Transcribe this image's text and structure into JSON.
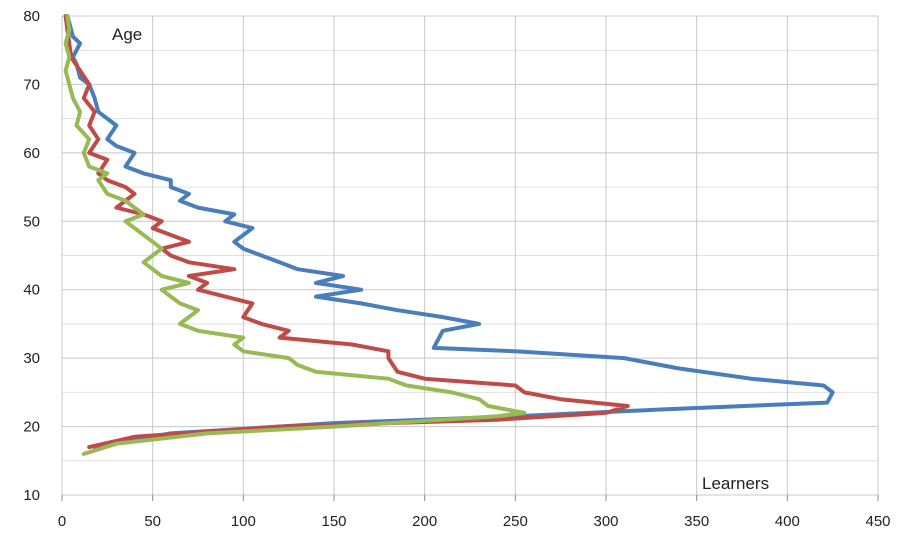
{
  "chart_data": {
    "type": "line",
    "title": "",
    "xlabel": "Learners",
    "ylabel": "Age",
    "xlim": [
      0,
      450
    ],
    "ylim": [
      10,
      80
    ],
    "x_ticks": [
      0,
      50,
      100,
      150,
      200,
      250,
      300,
      350,
      400,
      450
    ],
    "y_ticks": [
      10,
      20,
      30,
      40,
      50,
      60,
      70,
      80
    ],
    "grid": true,
    "legend": "none",
    "series": [
      {
        "color": "#4a7ebb",
        "points": [
          [
            18,
            17
          ],
          [
            60,
            19
          ],
          [
            150,
            20.5
          ],
          [
            250,
            21.5
          ],
          [
            330,
            22.5
          ],
          [
            422,
            23.5
          ],
          [
            425,
            25
          ],
          [
            420,
            26
          ],
          [
            380,
            27
          ],
          [
            340,
            28.5
          ],
          [
            310,
            30
          ],
          [
            250,
            31
          ],
          [
            205,
            31.5
          ],
          [
            208,
            33
          ],
          [
            210,
            34
          ],
          [
            230,
            35
          ],
          [
            210,
            36
          ],
          [
            185,
            37
          ],
          [
            165,
            38
          ],
          [
            140,
            39
          ],
          [
            165,
            40
          ],
          [
            140,
            41
          ],
          [
            155,
            42
          ],
          [
            130,
            43
          ],
          [
            120,
            44
          ],
          [
            110,
            45
          ],
          [
            100,
            46
          ],
          [
            95,
            47
          ],
          [
            105,
            49
          ],
          [
            90,
            50
          ],
          [
            95,
            51
          ],
          [
            75,
            52
          ],
          [
            65,
            53
          ],
          [
            70,
            54
          ],
          [
            60,
            55
          ],
          [
            60,
            56
          ],
          [
            45,
            57
          ],
          [
            35,
            58
          ],
          [
            40,
            60
          ],
          [
            30,
            61
          ],
          [
            25,
            62
          ],
          [
            30,
            64
          ],
          [
            20,
            66
          ],
          [
            18,
            68
          ],
          [
            15,
            70
          ],
          [
            10,
            71
          ],
          [
            8,
            73
          ],
          [
            6,
            74
          ],
          [
            10,
            76
          ],
          [
            6,
            77
          ],
          [
            4,
            79
          ],
          [
            3,
            80
          ]
        ]
      },
      {
        "color": "#be4b48",
        "points": [
          [
            15,
            17
          ],
          [
            40,
            18.5
          ],
          [
            120,
            20
          ],
          [
            240,
            21
          ],
          [
            300,
            22
          ],
          [
            312,
            23
          ],
          [
            275,
            24
          ],
          [
            255,
            25
          ],
          [
            250,
            26
          ],
          [
            200,
            27
          ],
          [
            185,
            28
          ],
          [
            180,
            30
          ],
          [
            180,
            31
          ],
          [
            160,
            32
          ],
          [
            120,
            33
          ],
          [
            125,
            34
          ],
          [
            110,
            35
          ],
          [
            100,
            36
          ],
          [
            105,
            38
          ],
          [
            90,
            39
          ],
          [
            75,
            40
          ],
          [
            80,
            41
          ],
          [
            70,
            42
          ],
          [
            95,
            43
          ],
          [
            70,
            44
          ],
          [
            60,
            45
          ],
          [
            55,
            46
          ],
          [
            70,
            47
          ],
          [
            60,
            48
          ],
          [
            50,
            49
          ],
          [
            55,
            50
          ],
          [
            45,
            51
          ],
          [
            30,
            52
          ],
          [
            40,
            54
          ],
          [
            35,
            55
          ],
          [
            25,
            56
          ],
          [
            20,
            57
          ],
          [
            25,
            59
          ],
          [
            15,
            60
          ],
          [
            20,
            62
          ],
          [
            15,
            64
          ],
          [
            18,
            66
          ],
          [
            12,
            68
          ],
          [
            15,
            70
          ],
          [
            10,
            72
          ],
          [
            5,
            74
          ],
          [
            4,
            76
          ],
          [
            3,
            78
          ],
          [
            2,
            80
          ]
        ]
      },
      {
        "color": "#98b954",
        "points": [
          [
            12,
            16
          ],
          [
            30,
            17.5
          ],
          [
            80,
            19
          ],
          [
            150,
            20
          ],
          [
            240,
            21.5
          ],
          [
            255,
            22
          ],
          [
            235,
            23
          ],
          [
            230,
            24
          ],
          [
            215,
            25
          ],
          [
            190,
            26
          ],
          [
            180,
            27
          ],
          [
            140,
            28
          ],
          [
            130,
            29
          ],
          [
            125,
            30
          ],
          [
            100,
            31
          ],
          [
            95,
            32
          ],
          [
            100,
            33
          ],
          [
            75,
            34
          ],
          [
            65,
            35
          ],
          [
            70,
            36
          ],
          [
            75,
            37
          ],
          [
            65,
            38
          ],
          [
            60,
            39
          ],
          [
            55,
            40
          ],
          [
            70,
            41
          ],
          [
            55,
            42
          ],
          [
            50,
            43
          ],
          [
            45,
            44
          ],
          [
            55,
            46
          ],
          [
            50,
            47
          ],
          [
            45,
            48
          ],
          [
            40,
            49
          ],
          [
            35,
            50
          ],
          [
            45,
            51
          ],
          [
            40,
            52
          ],
          [
            35,
            53
          ],
          [
            25,
            54
          ],
          [
            20,
            56
          ],
          [
            25,
            57
          ],
          [
            15,
            58
          ],
          [
            12,
            60
          ],
          [
            15,
            62
          ],
          [
            8,
            64
          ],
          [
            10,
            66
          ],
          [
            6,
            68
          ],
          [
            4,
            70
          ],
          [
            2,
            72
          ],
          [
            4,
            74
          ],
          [
            2,
            76
          ],
          [
            4,
            78
          ],
          [
            3,
            80
          ]
        ]
      }
    ]
  }
}
